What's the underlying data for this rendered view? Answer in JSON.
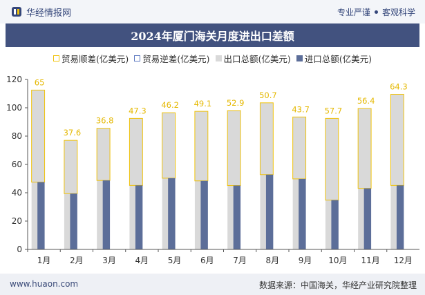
{
  "header": {
    "brand_name": "华经情报网",
    "tagline_left": "专业严谨",
    "tagline_right": "客观科学"
  },
  "title": "2024年厦门海关月度进出口差额",
  "legend": {
    "surplus": "贸易顺差(亿美元)",
    "deficit": "贸易逆差(亿美元)",
    "export": "出口总额(亿美元)",
    "import": "进口总额(亿美元)"
  },
  "footer": {
    "website": "www.huaon.com",
    "source": "数据来源：中国海关，华经产业研究院整理"
  },
  "colors": {
    "export": "#d9d9d9",
    "import": "#5c6e99",
    "surplus_outline": "#f0c20a",
    "surplus_label": "#e5b800",
    "title_bg": "#42527f"
  },
  "chart_data": {
    "type": "bar",
    "categories": [
      "1月",
      "2月",
      "3月",
      "4月",
      "5月",
      "6月",
      "7月",
      "8月",
      "9月",
      "10月",
      "11月",
      "12月"
    ],
    "ylim": [
      0,
      120
    ],
    "yticks": [
      0,
      20,
      40,
      60,
      80,
      100,
      120
    ],
    "series": [
      {
        "name": "出口总额(亿美元)",
        "values": [
          112.5,
          77.0,
          85.5,
          92.5,
          96.5,
          97.5,
          98.0,
          103.5,
          93.5,
          92.5,
          99.5,
          109.5
        ]
      },
      {
        "name": "进口总额(亿美元)",
        "values": [
          47.5,
          39.4,
          48.7,
          45.2,
          50.3,
          48.4,
          45.1,
          52.8,
          49.8,
          34.8,
          43.1,
          45.2
        ]
      },
      {
        "name": "贸易顺差(亿美元)",
        "values": [
          65,
          37.6,
          36.8,
          47.3,
          46.2,
          49.1,
          52.9,
          50.7,
          43.7,
          57.7,
          56.4,
          64.3
        ]
      }
    ],
    "surplus_labels": [
      "65",
      "37.6",
      "36.8",
      "47.3",
      "46.2",
      "49.1",
      "52.9",
      "50.7",
      "43.7",
      "57.7",
      "56.4",
      "64.3"
    ]
  }
}
